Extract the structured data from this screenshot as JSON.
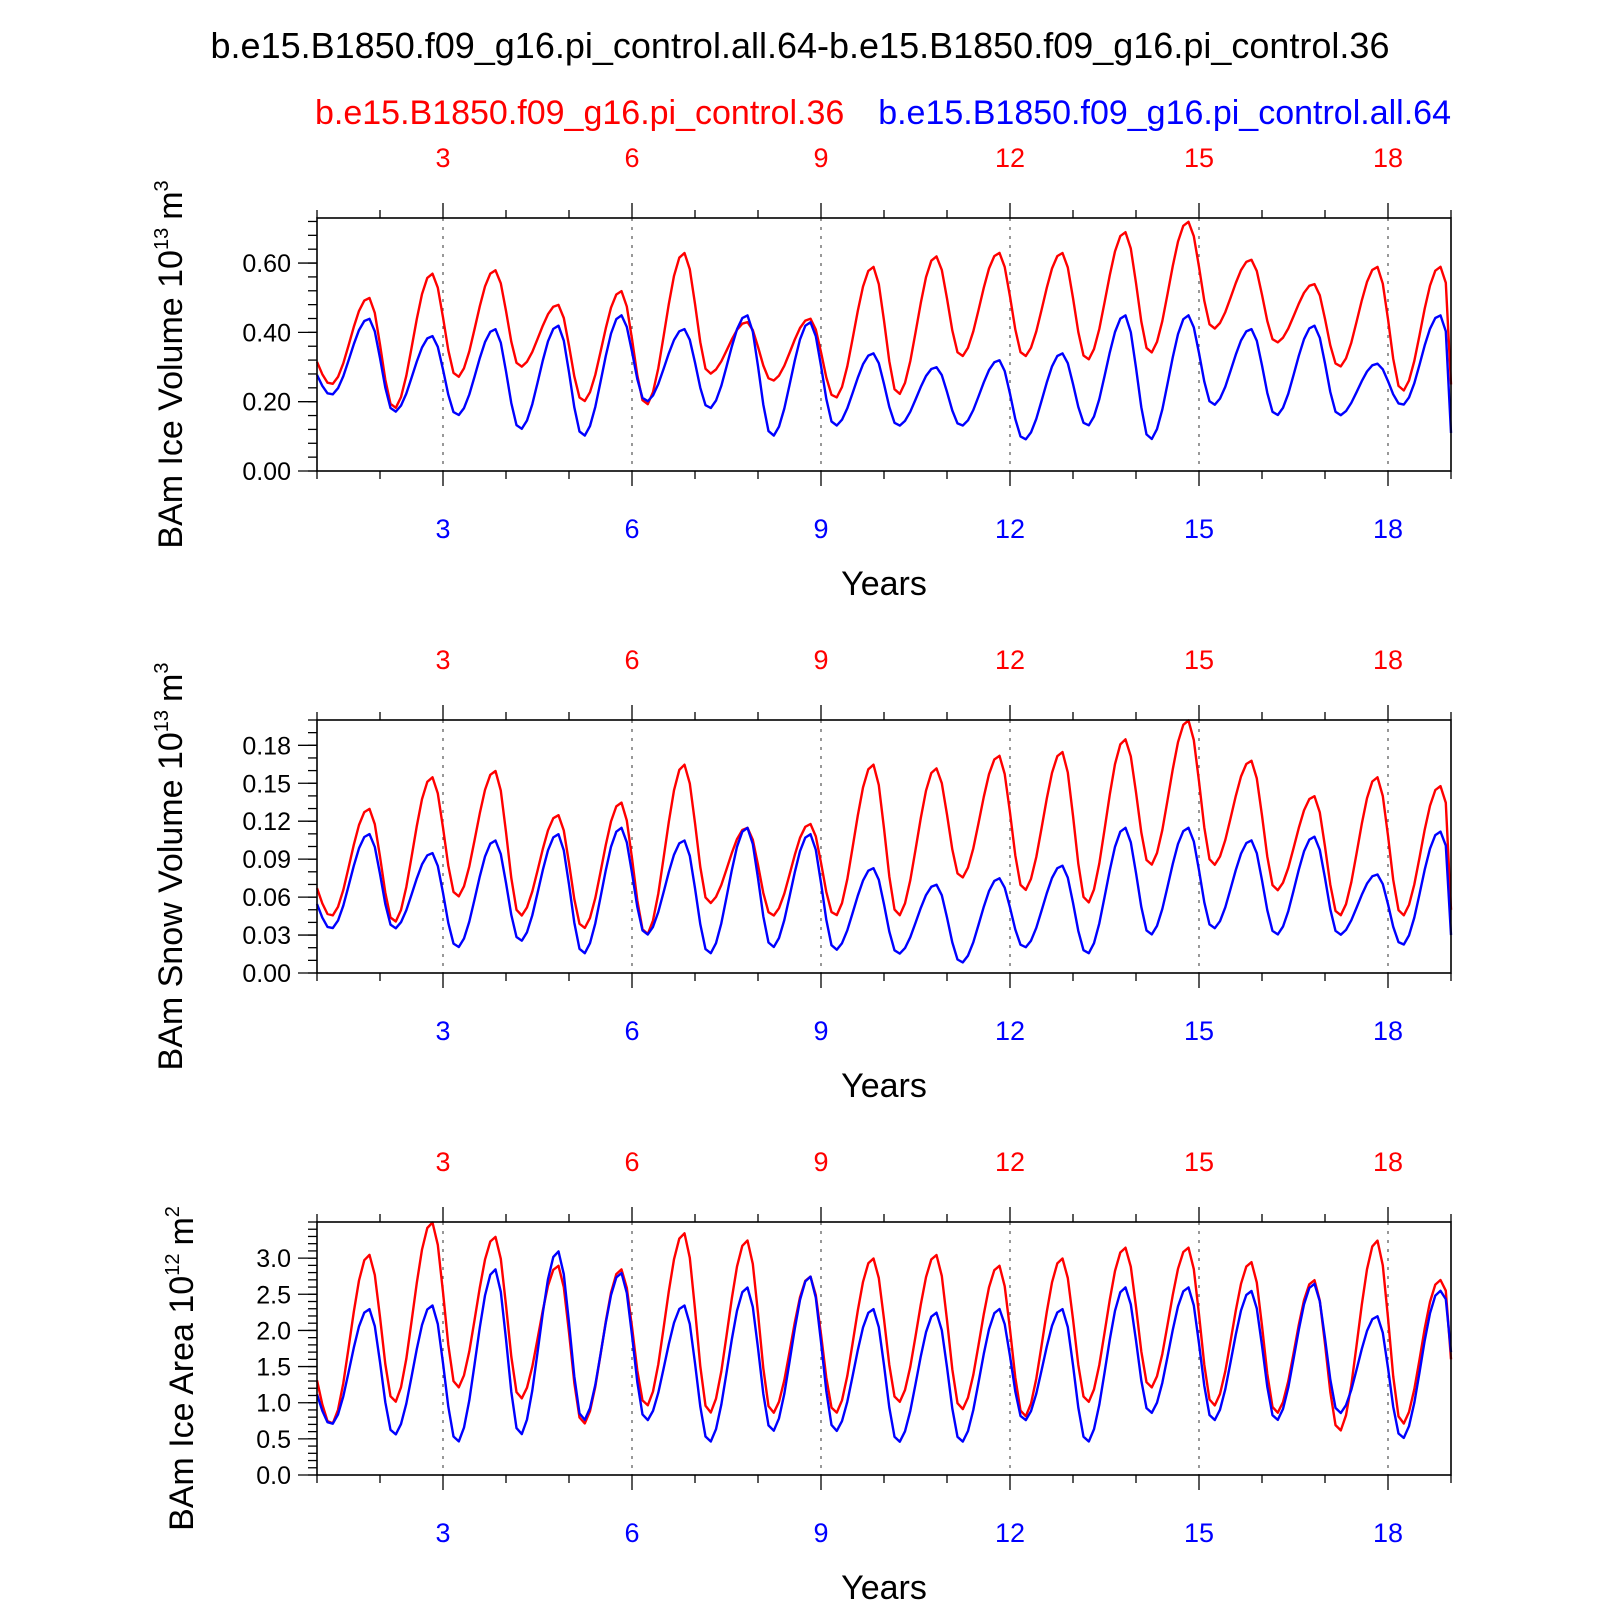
{
  "title": "b.e15.B1850.f09_g16.pi_control.all.64-b.e15.B1850.f09_g16.pi_control.36",
  "series_labels": {
    "red": "b.e15.B1850.f09_g16.pi_control.36",
    "blue": "b.e15.B1850.f09_g16.pi_control.all.64"
  },
  "colors": {
    "red": "#ff0000",
    "blue": "#0000ff"
  },
  "chart_data": [
    {
      "type": "line",
      "ylabel": "BAm Ice Volume 10",
      "ylabel_exp": "13",
      "ylabel_unit": "m",
      "ylabel_unit_exp": "3",
      "xlabel": "Years",
      "xlim": [
        1,
        19
      ],
      "ylim": [
        0,
        0.73
      ],
      "yticks": [
        0,
        0.2,
        0.4,
        0.6
      ],
      "ytick_labels": [
        "0.00",
        "0.20",
        "0.40",
        "0.60"
      ],
      "yminor_step": 0.04,
      "xticks": [
        3,
        6,
        9,
        12,
        15,
        18
      ],
      "xtick_labels": [
        "3",
        "6",
        "9",
        "12",
        "15",
        "18"
      ],
      "series": [
        {
          "name": "b.e15.B1850.f09_g16.pi_control.36",
          "color": "red",
          "min": [
            0.25,
            0.18,
            0.27,
            0.3,
            0.2,
            0.19,
            0.28,
            0.26,
            0.21,
            0.22,
            0.33,
            0.33,
            0.32,
            0.34,
            0.41,
            0.37,
            0.3,
            0.23,
            0.25
          ],
          "max": [
            0.5,
            0.57,
            0.58,
            0.48,
            0.52,
            0.63,
            0.43,
            0.44,
            0.59,
            0.62,
            0.63,
            0.63,
            0.69,
            0.72,
            0.61,
            0.54,
            0.59,
            0.59
          ]
        },
        {
          "name": "b.e15.B1850.f09_g16.pi_control.all.64",
          "color": "blue",
          "min": [
            0.22,
            0.17,
            0.16,
            0.12,
            0.1,
            0.2,
            0.18,
            0.1,
            0.13,
            0.13,
            0.13,
            0.09,
            0.13,
            0.09,
            0.19,
            0.16,
            0.16,
            0.19,
            0.11
          ],
          "max": [
            0.44,
            0.39,
            0.41,
            0.42,
            0.45,
            0.41,
            0.45,
            0.43,
            0.34,
            0.3,
            0.32,
            0.34,
            0.45,
            0.45,
            0.41,
            0.42,
            0.31,
            0.45
          ]
        }
      ]
    },
    {
      "type": "line",
      "ylabel": "BAm Snow Volume 10",
      "ylabel_exp": "13",
      "ylabel_unit": "m",
      "ylabel_unit_exp": "3",
      "xlabel": "Years",
      "xlim": [
        1,
        19
      ],
      "ylim": [
        0,
        0.2
      ],
      "yticks": [
        0,
        0.03,
        0.06,
        0.09,
        0.12,
        0.15,
        0.18
      ],
      "ytick_labels": [
        "0.00",
        "0.03",
        "0.06",
        "0.09",
        "0.12",
        "0.15",
        "0.18"
      ],
      "yminor_step": 0.01,
      "xticks": [
        3,
        6,
        9,
        12,
        15,
        18
      ],
      "xtick_labels": [
        "3",
        "6",
        "9",
        "12",
        "15",
        "18"
      ],
      "series": [
        {
          "name": "b.e15.B1850.f09_g16.pi_control.36",
          "color": "red",
          "min": [
            0.045,
            0.04,
            0.06,
            0.045,
            0.035,
            0.03,
            0.055,
            0.045,
            0.045,
            0.045,
            0.075,
            0.065,
            0.055,
            0.085,
            0.085,
            0.065,
            0.045,
            0.045,
            0.05
          ],
          "max": [
            0.13,
            0.155,
            0.16,
            0.125,
            0.135,
            0.165,
            0.115,
            0.118,
            0.165,
            0.162,
            0.172,
            0.175,
            0.185,
            0.2,
            0.168,
            0.14,
            0.155,
            0.148
          ]
        },
        {
          "name": "b.e15.B1850.f09_g16.pi_control.all.64",
          "color": "blue",
          "min": [
            0.035,
            0.035,
            0.02,
            0.025,
            0.015,
            0.03,
            0.015,
            0.02,
            0.018,
            0.015,
            0.008,
            0.02,
            0.015,
            0.03,
            0.035,
            0.03,
            0.03,
            0.022,
            0.03
          ],
          "max": [
            0.11,
            0.095,
            0.105,
            0.11,
            0.115,
            0.105,
            0.115,
            0.11,
            0.083,
            0.07,
            0.075,
            0.085,
            0.115,
            0.115,
            0.105,
            0.108,
            0.078,
            0.112
          ]
        }
      ]
    },
    {
      "type": "line",
      "ylabel": "BAm Ice Area 10",
      "ylabel_exp": "12",
      "ylabel_unit": "m",
      "ylabel_unit_exp": "2",
      "xlabel": "Years",
      "xlim": [
        1,
        19
      ],
      "ylim": [
        0,
        3.5
      ],
      "yticks": [
        0,
        0.5,
        1,
        1.5,
        2,
        2.5,
        3
      ],
      "ytick_labels": [
        "0.0",
        "0.5",
        "1.0",
        "1.5",
        "2.0",
        "2.5",
        "3.0"
      ],
      "yminor_step": 0.1,
      "xticks": [
        3,
        6,
        9,
        12,
        15,
        18
      ],
      "xtick_labels": [
        "3",
        "6",
        "9",
        "12",
        "15",
        "18"
      ],
      "series": [
        {
          "name": "b.e15.B1850.f09_g16.pi_control.36",
          "color": "red",
          "min": [
            0.7,
            1.0,
            1.2,
            1.05,
            0.7,
            0.95,
            0.85,
            0.85,
            0.85,
            1.0,
            0.9,
            0.8,
            1.0,
            1.2,
            0.95,
            0.85,
            0.6,
            0.7,
            1.6
          ],
          "max": [
            3.05,
            3.5,
            3.3,
            2.9,
            2.85,
            3.35,
            3.25,
            2.75,
            3.0,
            3.05,
            2.9,
            3.0,
            3.15,
            3.15,
            2.95,
            2.7,
            3.25,
            2.7
          ]
        },
        {
          "name": "b.e15.B1850.f09_g16.pi_control.all.64",
          "color": "blue",
          "min": [
            0.7,
            0.55,
            0.45,
            0.55,
            0.75,
            0.75,
            0.45,
            0.6,
            0.6,
            0.45,
            0.45,
            0.75,
            0.45,
            0.85,
            0.75,
            0.75,
            0.85,
            0.5,
            1.7
          ],
          "max": [
            2.3,
            2.35,
            2.85,
            3.1,
            2.8,
            2.35,
            2.6,
            2.75,
            2.3,
            2.25,
            2.3,
            2.3,
            2.6,
            2.6,
            2.55,
            2.65,
            2.2,
            2.55
          ]
        }
      ]
    }
  ]
}
